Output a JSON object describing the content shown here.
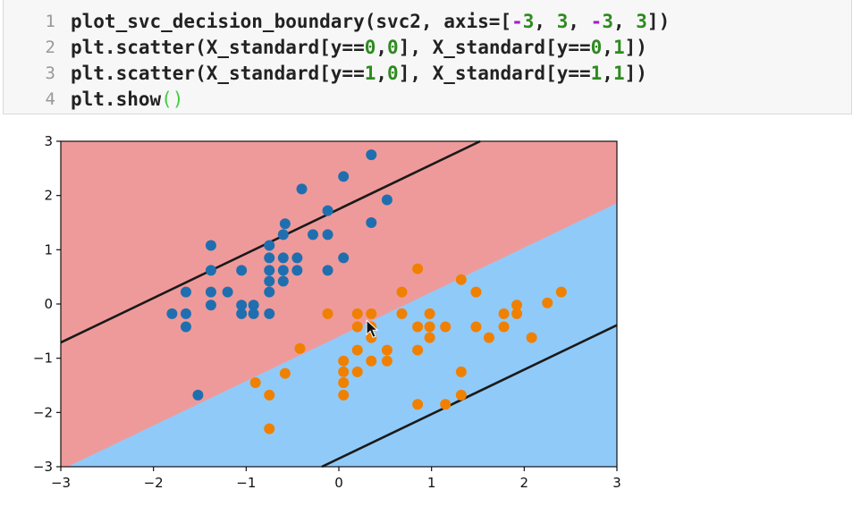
{
  "notebook_cell": {
    "line_numbers": [
      "1",
      "2",
      "3",
      "4"
    ],
    "lines": [
      [
        {
          "t": "plot_svc_decision_boundary(svc2, axis=[",
          "c": "plain"
        },
        {
          "t": "-",
          "c": "op"
        },
        {
          "t": "3",
          "c": "num"
        },
        {
          "t": ", ",
          "c": "plain"
        },
        {
          "t": "3",
          "c": "num"
        },
        {
          "t": ", ",
          "c": "plain"
        },
        {
          "t": "-",
          "c": "op"
        },
        {
          "t": "3",
          "c": "num"
        },
        {
          "t": ", ",
          "c": "plain"
        },
        {
          "t": "3",
          "c": "num"
        },
        {
          "t": "])",
          "c": "plain"
        }
      ],
      [
        {
          "t": "plt.scatter(X_standard[y==",
          "c": "plain"
        },
        {
          "t": "0",
          "c": "num"
        },
        {
          "t": ",",
          "c": "plain"
        },
        {
          "t": "0",
          "c": "num"
        },
        {
          "t": "], X_standard[y==",
          "c": "plain"
        },
        {
          "t": "0",
          "c": "num"
        },
        {
          "t": ",",
          "c": "plain"
        },
        {
          "t": "1",
          "c": "num"
        },
        {
          "t": "])",
          "c": "plain"
        }
      ],
      [
        {
          "t": "plt.scatter(X_standard[y==",
          "c": "plain"
        },
        {
          "t": "1",
          "c": "num"
        },
        {
          "t": ",",
          "c": "plain"
        },
        {
          "t": "0",
          "c": "num"
        },
        {
          "t": "], X_standard[y==",
          "c": "plain"
        },
        {
          "t": "1",
          "c": "num"
        },
        {
          "t": ",",
          "c": "plain"
        },
        {
          "t": "1",
          "c": "num"
        },
        {
          "t": "])",
          "c": "plain"
        }
      ],
      [
        {
          "t": "plt.show",
          "c": "plain"
        },
        {
          "t": "()",
          "c": "paren"
        }
      ]
    ]
  },
  "chart_data": {
    "type": "scatter",
    "title": "",
    "xlabel": "",
    "ylabel": "",
    "xlim": [
      -3,
      3
    ],
    "ylim": [
      -3,
      3
    ],
    "xticks": [
      "−3",
      "−2",
      "−1",
      "0",
      "1",
      "2",
      "3"
    ],
    "yticks": [
      "3",
      "2",
      "1",
      "0",
      "−1",
      "−2",
      "−3"
    ],
    "xtick_values": [
      -3,
      -2,
      -1,
      0,
      1,
      2,
      3
    ],
    "ytick_values": [
      3,
      2,
      1,
      0,
      -1,
      -2,
      -3
    ],
    "grid": false,
    "regions": [
      {
        "name": "upper region",
        "color": "#ef9a9a"
      },
      {
        "name": "lower region",
        "color": "#90caf9"
      }
    ],
    "decision_boundary": {
      "slope": 0.82,
      "intercept": -0.6
    },
    "margin_lines": [
      {
        "slope": 0.82,
        "intercept": 1.75,
        "color": "#1a1a1a"
      },
      {
        "slope": 0.82,
        "intercept": -2.85,
        "color": "#1a1a1a"
      }
    ],
    "series": [
      {
        "color": "#1f6fb0",
        "points": [
          [
            -1.8,
            -0.18
          ],
          [
            -1.65,
            0.22
          ],
          [
            -1.65,
            -0.18
          ],
          [
            -1.65,
            -0.42
          ],
          [
            -1.38,
            1.08
          ],
          [
            -1.38,
            0.62
          ],
          [
            -1.38,
            0.22
          ],
          [
            -1.38,
            -0.02
          ],
          [
            -1.2,
            0.22
          ],
          [
            -1.05,
            0.62
          ],
          [
            -1.05,
            -0.02
          ],
          [
            -1.05,
            -0.18
          ],
          [
            -0.92,
            -0.02
          ],
          [
            -0.92,
            -0.18
          ],
          [
            -0.75,
            1.08
          ],
          [
            -0.75,
            0.85
          ],
          [
            -0.75,
            0.62
          ],
          [
            -0.75,
            0.42
          ],
          [
            -0.75,
            0.22
          ],
          [
            -0.75,
            -0.18
          ],
          [
            -0.6,
            1.28
          ],
          [
            -0.6,
            0.85
          ],
          [
            -0.6,
            0.62
          ],
          [
            -0.6,
            0.42
          ],
          [
            -0.58,
            1.48
          ],
          [
            -0.45,
            0.85
          ],
          [
            -0.45,
            0.62
          ],
          [
            -0.4,
            2.12
          ],
          [
            -0.28,
            1.28
          ],
          [
            -0.12,
            1.72
          ],
          [
            -0.12,
            1.28
          ],
          [
            -0.12,
            0.62
          ],
          [
            0.05,
            2.35
          ],
          [
            0.05,
            0.85
          ],
          [
            0.35,
            2.75
          ],
          [
            0.35,
            1.5
          ],
          [
            0.52,
            1.92
          ],
          [
            -1.52,
            -1.68
          ]
        ]
      },
      {
        "color": "#f08000",
        "points": [
          [
            -0.9,
            -1.45
          ],
          [
            -0.75,
            -1.68
          ],
          [
            -0.75,
            -2.3
          ],
          [
            -0.58,
            -1.28
          ],
          [
            -0.42,
            -0.82
          ],
          [
            -0.12,
            -0.18
          ],
          [
            0.05,
            -1.05
          ],
          [
            0.05,
            -1.25
          ],
          [
            0.05,
            -1.45
          ],
          [
            0.05,
            -1.68
          ],
          [
            0.2,
            -0.18
          ],
          [
            0.2,
            -0.42
          ],
          [
            0.2,
            -0.85
          ],
          [
            0.2,
            -1.25
          ],
          [
            0.35,
            -0.18
          ],
          [
            0.35,
            -0.42
          ],
          [
            0.35,
            -0.62
          ],
          [
            0.35,
            -1.05
          ],
          [
            0.52,
            -0.85
          ],
          [
            0.52,
            -1.05
          ],
          [
            0.68,
            0.22
          ],
          [
            0.68,
            -0.18
          ],
          [
            0.85,
            0.65
          ],
          [
            0.85,
            -0.42
          ],
          [
            0.85,
            -0.85
          ],
          [
            0.85,
            -1.85
          ],
          [
            0.98,
            -0.18
          ],
          [
            0.98,
            -0.42
          ],
          [
            0.98,
            -0.62
          ],
          [
            1.15,
            -0.42
          ],
          [
            1.15,
            -1.85
          ],
          [
            1.32,
            0.45
          ],
          [
            1.32,
            -1.25
          ],
          [
            1.32,
            -1.68
          ],
          [
            1.48,
            0.22
          ],
          [
            1.48,
            -0.42
          ],
          [
            1.62,
            -0.62
          ],
          [
            1.78,
            -0.18
          ],
          [
            1.78,
            -0.42
          ],
          [
            1.92,
            -0.02
          ],
          [
            1.92,
            -0.18
          ],
          [
            2.08,
            -0.62
          ],
          [
            2.25,
            0.02
          ],
          [
            2.4,
            0.22
          ]
        ]
      }
    ]
  }
}
